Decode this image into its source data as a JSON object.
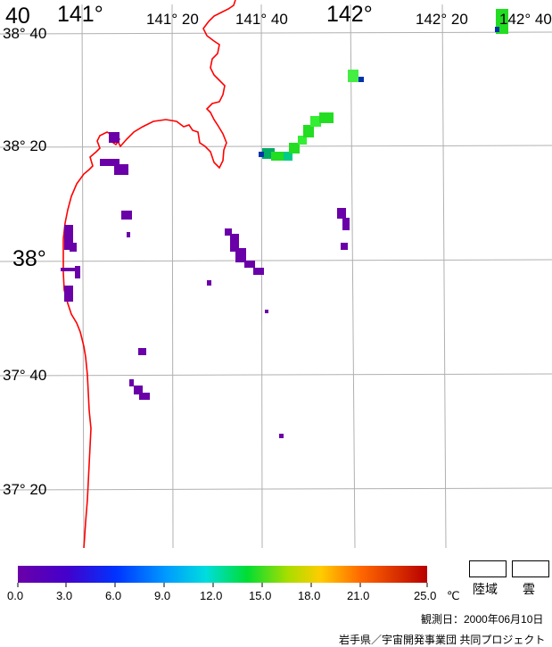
{
  "map": {
    "lon_labels": [
      "141°",
      "141° 20",
      "141° 40",
      "142°",
      "142° 20",
      "142° 40"
    ],
    "lon_label_left_cut": "40",
    "lat_labels": [
      "38° 40",
      "38° 20",
      "38°",
      "37° 40",
      "37° 20"
    ]
  },
  "colors": {
    "coastline": "#ff0000",
    "grid": "#b0b0b0",
    "sst_low": "#6a00a8",
    "sst_green": "#22dd22",
    "sst_mid": "#33cc66"
  },
  "colorbar": {
    "ticks": [
      "0.0",
      "3.0",
      "6.0",
      "9.0",
      "12.0",
      "15.0",
      "18.0",
      "21.0",
      "25.0"
    ],
    "unit": "℃",
    "min": 0.0,
    "max": 25.0
  },
  "legend": {
    "land": "陸域",
    "cloud": "雲"
  },
  "footer": {
    "observation_date": "観測日：2000年06月10日",
    "credit": "岩手県／宇宙開発事業団 共同プロジェクト"
  }
}
